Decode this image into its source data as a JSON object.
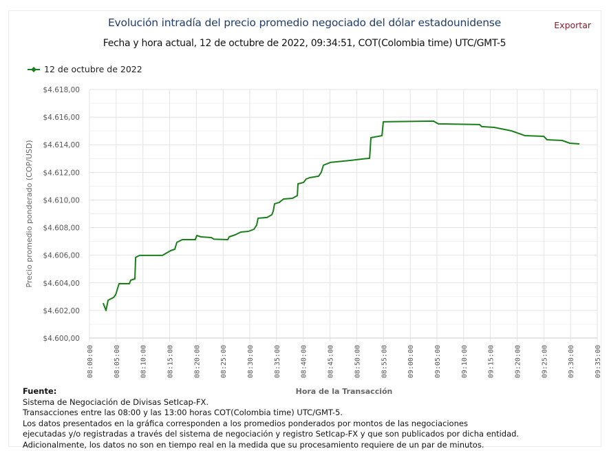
{
  "header": {
    "title": "Evolución intradía del precio promedio negociado del dólar estadounidense",
    "subtitle": "Fecha y hora actual, 12 de octubre de 2022, 09:34:51, COT(Colombia time) UTC/GMT-5",
    "export_label": "Exportar"
  },
  "footer": {
    "heading": "Fuente:",
    "lines": [
      "Sistema de Negociación de Divisas SetIcap-FX.",
      "Transacciones entre las 08:00 y las 13:00 horas COT(Colombia time) UTC/GMT-5.",
      "Los datos presentados en la gráfica corresponden a los promedios ponderados por montos de las negociaciones",
      "ejecutadas y/o registradas a través del sistema de negociación y registro SetIcap-FX y que son publicados por dicha entidad.",
      "Adicionalmente, los datos no son en tiempo real en la medida que su procesamiento requiere de un par de minutos."
    ]
  },
  "chart_data": {
    "type": "line",
    "title": "Evolución intradía del precio promedio negociado del dólar estadounidense",
    "xlabel": "Hora de la Transacción",
    "ylabel": "Precio promedio ponderado (COP/USD)",
    "xlim": [
      "08:00:00",
      "09:35:00"
    ],
    "ylim": [
      4600,
      4618
    ],
    "x_ticks": [
      "08:00:00",
      "08:05:00",
      "08:10:00",
      "08:15:00",
      "08:20:00",
      "08:25:00",
      "08:30:00",
      "08:35:00",
      "08:40:00",
      "08:45:00",
      "08:50:00",
      "08:55:00",
      "09:00:00",
      "09:05:00",
      "09:10:00",
      "09:15:00",
      "09:20:00",
      "09:25:00",
      "09:30:00",
      "09:35:00"
    ],
    "y_ticks": [
      "$4.600,00",
      "$4.602,00",
      "$4.604,00",
      "$4.606,00",
      "$4.608,00",
      "$4.610,00",
      "$4.612,00",
      "$4.614,00",
      "$4.616,00",
      "$4.618,00"
    ],
    "y_tick_values": [
      4600,
      4602,
      4604,
      4606,
      4608,
      4610,
      4612,
      4614,
      4616,
      4618
    ],
    "grid": true,
    "legend_position": "top-left",
    "series": [
      {
        "name": "12 de octubre de 2022",
        "color": "#1a7f1a",
        "x": [
          "08:02:34",
          "08:03:05",
          "08:03:29",
          "08:04:30",
          "08:04:54",
          "08:05:32",
          "08:07:28",
          "08:07:43",
          "08:08:30",
          "08:08:38",
          "08:09:24",
          "08:13:39",
          "08:15:11",
          "08:15:58",
          "08:16:21",
          "08:17:23",
          "08:19:49",
          "08:20:05",
          "08:20:51",
          "08:22:47",
          "08:23:18",
          "08:25:53",
          "08:26:08",
          "08:27:17",
          "08:28:19",
          "08:29:44",
          "08:30:46",
          "08:31:17",
          "08:31:32",
          "08:33:13",
          "08:34:07",
          "08:34:22",
          "08:34:38",
          "08:35:32",
          "08:36:18",
          "08:37:59",
          "08:38:53",
          "08:39:00",
          "08:40:02",
          "08:40:33",
          "08:41:12",
          "08:42:52",
          "08:43:23",
          "08:43:46",
          "08:45:03",
          "08:48:55",
          "08:51:06",
          "08:52:24",
          "08:52:39",
          "08:54:43",
          "08:54:58",
          "09:04:22",
          "09:05:16",
          "09:12:59",
          "09:13:23",
          "09:15:42",
          "09:18:55",
          "09:21:29",
          "09:24:58",
          "09:25:37",
          "09:28:26",
          "09:29:52",
          "09:31:40"
        ],
        "values": [
          4602.54,
          4602.0,
          4602.74,
          4602.94,
          4603.14,
          4603.94,
          4603.94,
          4604.19,
          4604.29,
          4605.84,
          4605.99,
          4605.99,
          4606.33,
          4606.43,
          4606.93,
          4607.13,
          4607.13,
          4607.43,
          4607.33,
          4607.28,
          4607.16,
          4607.13,
          4607.33,
          4607.48,
          4607.68,
          4607.73,
          4607.88,
          4608.18,
          4608.68,
          4608.73,
          4608.93,
          4609.18,
          4609.73,
          4609.83,
          4610.07,
          4610.12,
          4610.32,
          4611.17,
          4611.27,
          4611.52,
          4611.62,
          4611.72,
          4612.02,
          4612.52,
          4612.72,
          4612.87,
          4612.97,
          4613.02,
          4614.51,
          4614.66,
          4615.66,
          4615.71,
          4615.51,
          4615.46,
          4615.31,
          4615.26,
          4615.01,
          4614.66,
          4614.61,
          4614.36,
          4614.31,
          4614.11,
          4614.06
        ]
      }
    ]
  }
}
